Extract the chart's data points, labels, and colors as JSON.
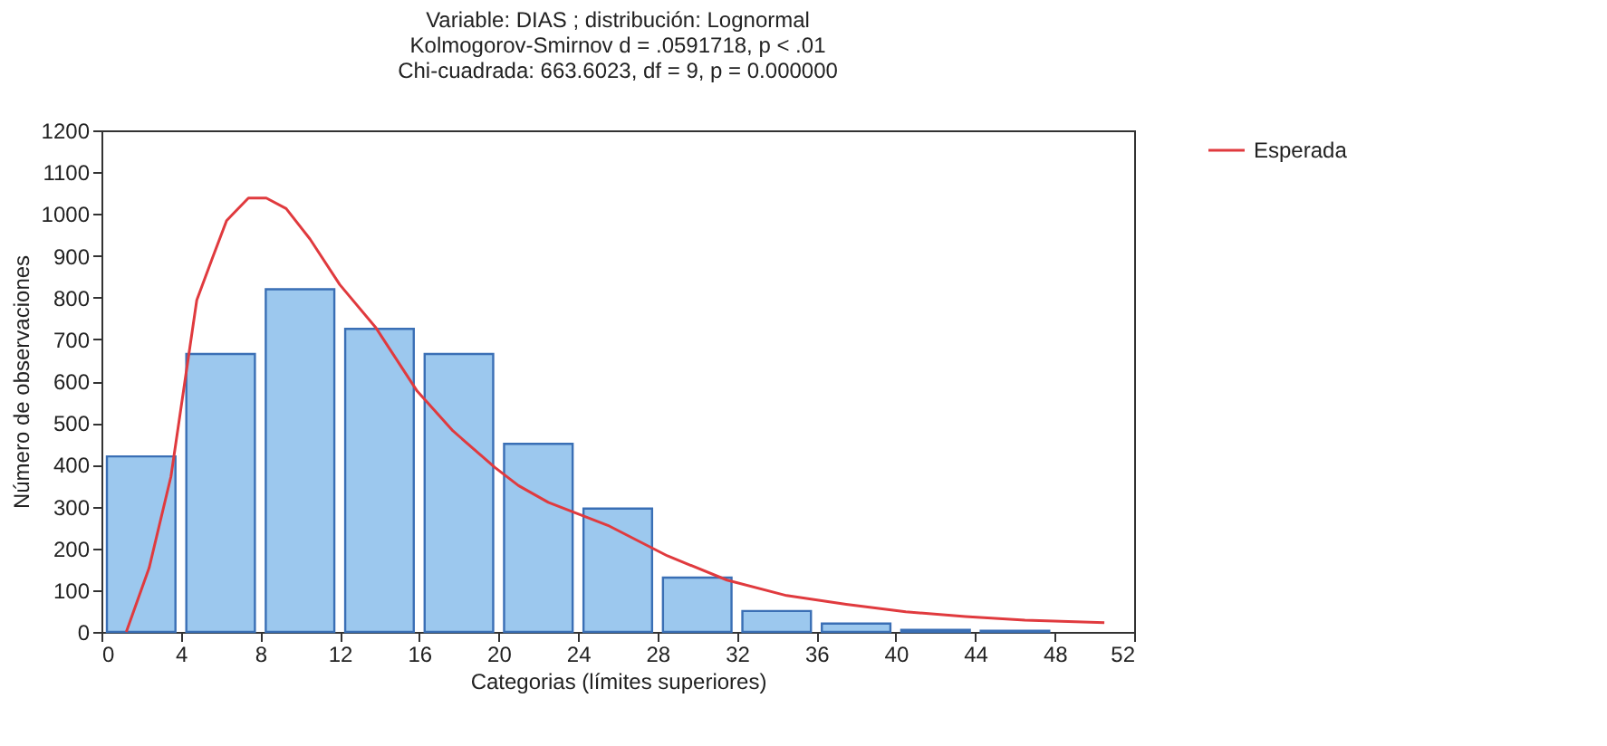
{
  "chart_data": {
    "type": "histogram",
    "title": [
      "Variable:  DIAS ;  distribución: Lognormal",
      "Kolmogorov-Smirnov     d = .0591718, p <  .01",
      "Chi-cuadrada: 663.6023, df =   9, p = 0.000000"
    ],
    "xlabel": "Categorias (límites superiores)",
    "ylabel": "Número de observaciones",
    "bins": [
      0,
      4,
      8,
      12,
      16,
      20,
      24,
      28,
      32,
      36,
      40,
      44,
      48
    ],
    "values": [
      420,
      665,
      820,
      725,
      665,
      450,
      295,
      130,
      50,
      20,
      5,
      3
    ],
    "color": "#9cc8ee",
    "series": [
      {
        "type": "line",
        "name": "Esperada",
        "color": "#e03a3e",
        "x": [
          1.25,
          2.4,
          3.5,
          4.8,
          5.6,
          6.3,
          7.4,
          8.3,
          9.3,
          10.5,
          12,
          13.8,
          15.9,
          17.7,
          19.8,
          21,
          22.5,
          25.5,
          28.5,
          31.5,
          34.5,
          37.5,
          40.5,
          43.5,
          46.5,
          50.5
        ],
        "values": [
          0,
          153,
          372,
          794,
          896,
          984,
          1038,
          1038,
          1013,
          940,
          831,
          729,
          576,
          481,
          394,
          350,
          310,
          255,
          182,
          124,
          87,
          66,
          48,
          37,
          28,
          22
        ]
      }
    ],
    "xlim": [
      0,
      52
    ],
    "xticks": [
      0,
      4,
      8,
      12,
      16,
      20,
      24,
      28,
      32,
      36,
      40,
      44,
      48,
      52
    ],
    "ylim": [
      0,
      1200
    ],
    "yticks": [
      0,
      100,
      200,
      300,
      400,
      500,
      600,
      700,
      800,
      900,
      1000,
      1100,
      1200
    ],
    "grid": false,
    "legend": "right",
    "marker": "none",
    "line_style": "solid"
  }
}
